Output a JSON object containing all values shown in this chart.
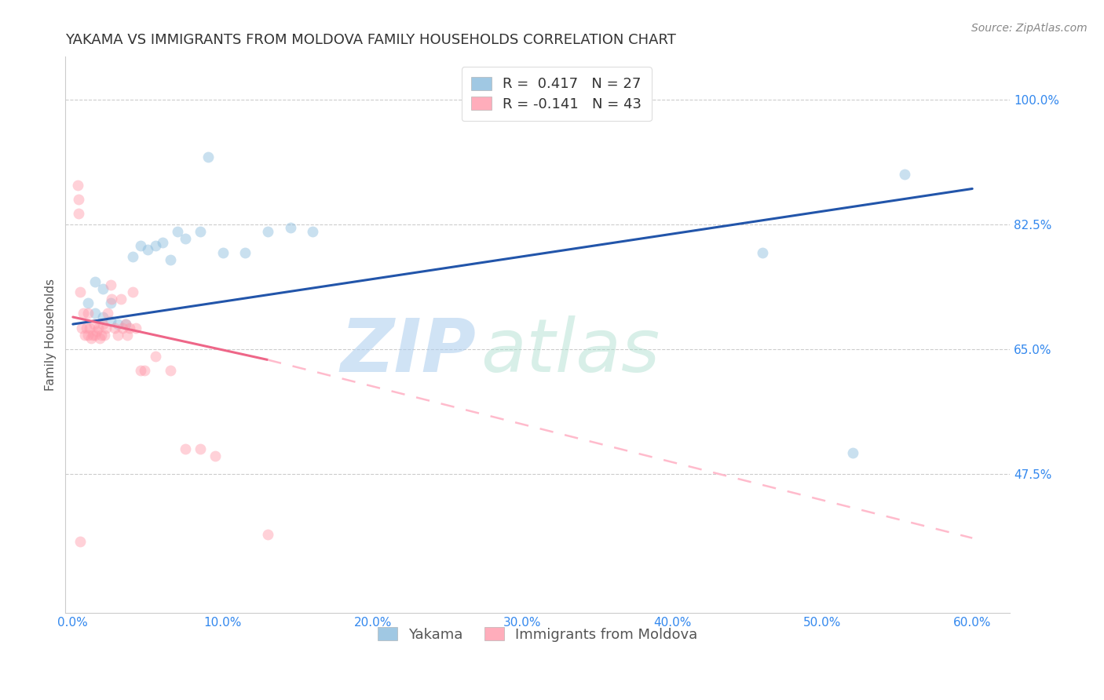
{
  "title": "YAKAMA VS IMMIGRANTS FROM MOLDOVA FAMILY HOUSEHOLDS CORRELATION CHART",
  "source": "Source: ZipAtlas.com",
  "ylabel": "Family Households",
  "xlabel_ticks": [
    "0.0%",
    "10.0%",
    "20.0%",
    "30.0%",
    "40.0%",
    "50.0%",
    "60.0%"
  ],
  "xlabel_vals": [
    0.0,
    0.1,
    0.2,
    0.3,
    0.4,
    0.5,
    0.6
  ],
  "ytick_labels": [
    "100.0%",
    "82.5%",
    "65.0%",
    "47.5%"
  ],
  "ytick_vals": [
    1.0,
    0.825,
    0.65,
    0.475
  ],
  "ylim": [
    0.28,
    1.06
  ],
  "xlim": [
    -0.005,
    0.625
  ],
  "yakama_R": 0.417,
  "yakama_N": 27,
  "moldova_R": -0.141,
  "moldova_N": 43,
  "yakama_color": "#88BBDD",
  "moldova_color": "#FF99AA",
  "trendline_yakama_color": "#2255AA",
  "trendline_moldova_solid_color": "#EE6688",
  "trendline_moldova_dashed_color": "#FFBBCC",
  "background_color": "#FFFFFF",
  "watermark_zip": "ZIP",
  "watermark_atlas": "atlas",
  "title_fontsize": 13,
  "axis_label_fontsize": 11,
  "tick_fontsize": 11,
  "legend_fontsize": 13,
  "source_fontsize": 10,
  "marker_size": 100,
  "marker_alpha": 0.45,
  "yakama_x": [
    0.01,
    0.015,
    0.015,
    0.02,
    0.02,
    0.025,
    0.025,
    0.03,
    0.035,
    0.04,
    0.045,
    0.05,
    0.055,
    0.06,
    0.065,
    0.07,
    0.075,
    0.085,
    0.09,
    0.1,
    0.115,
    0.13,
    0.145,
    0.16,
    0.46,
    0.52,
    0.555
  ],
  "yakama_y": [
    0.715,
    0.7,
    0.745,
    0.735,
    0.695,
    0.715,
    0.69,
    0.685,
    0.685,
    0.78,
    0.795,
    0.79,
    0.795,
    0.8,
    0.775,
    0.815,
    0.805,
    0.815,
    0.92,
    0.785,
    0.785,
    0.815,
    0.82,
    0.815,
    0.785,
    0.505,
    0.895
  ],
  "moldova_x": [
    0.003,
    0.004,
    0.004,
    0.005,
    0.006,
    0.007,
    0.008,
    0.009,
    0.01,
    0.01,
    0.011,
    0.012,
    0.013,
    0.014,
    0.015,
    0.016,
    0.017,
    0.018,
    0.019,
    0.02,
    0.021,
    0.022,
    0.023,
    0.025,
    0.026,
    0.028,
    0.03,
    0.032,
    0.033,
    0.035,
    0.036,
    0.038,
    0.04,
    0.042,
    0.045,
    0.048,
    0.055,
    0.065,
    0.075,
    0.085,
    0.095,
    0.13,
    0.005
  ],
  "moldova_y": [
    0.88,
    0.86,
    0.84,
    0.73,
    0.68,
    0.7,
    0.67,
    0.68,
    0.67,
    0.7,
    0.68,
    0.665,
    0.67,
    0.685,
    0.67,
    0.675,
    0.68,
    0.665,
    0.67,
    0.685,
    0.67,
    0.68,
    0.7,
    0.74,
    0.72,
    0.68,
    0.67,
    0.72,
    0.68,
    0.685,
    0.67,
    0.68,
    0.73,
    0.68,
    0.62,
    0.62,
    0.64,
    0.62,
    0.51,
    0.51,
    0.5,
    0.39,
    0.38
  ],
  "trendline_yakama_x0": 0.0,
  "trendline_yakama_x1": 0.6,
  "trendline_yakama_y0": 0.685,
  "trendline_yakama_y1": 0.875,
  "trendline_moldova_x0": 0.0,
  "trendline_moldova_solid_x1": 0.13,
  "trendline_moldova_dashed_x1": 0.6,
  "trendline_moldova_y0": 0.695,
  "trendline_moldova_y_at_solid": 0.635,
  "trendline_moldova_y1": 0.385
}
